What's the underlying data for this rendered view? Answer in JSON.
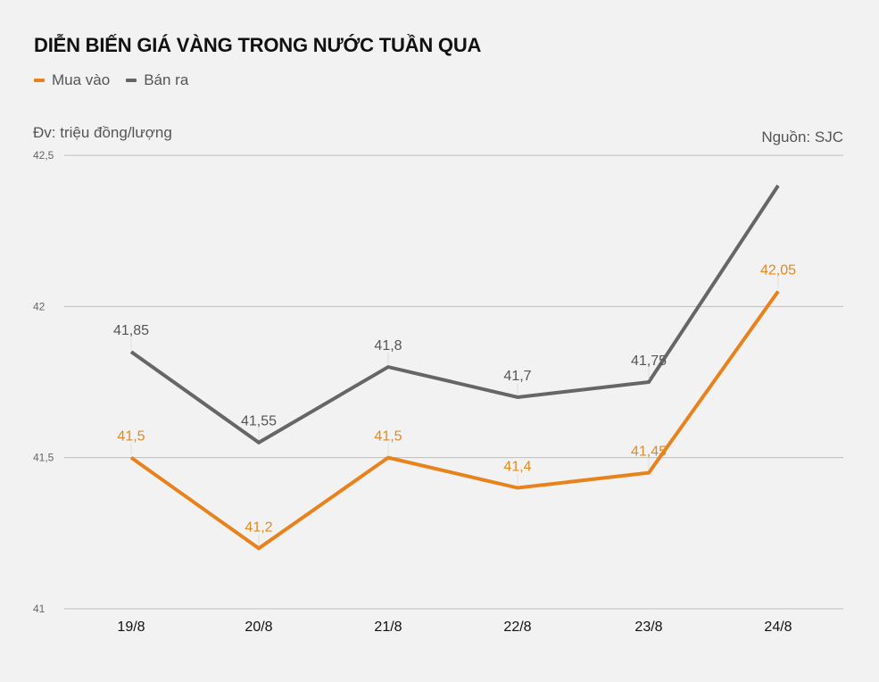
{
  "header": {
    "title": "DIỄN BIẾN GIÁ VÀNG TRONG NƯỚC TUẦN QUA",
    "legend": [
      {
        "label": "Mua vào",
        "color": "#e8821c"
      },
      {
        "label": "Bán ra",
        "color": "#666666"
      }
    ],
    "unit": "Đv: triệu đồng/lượng",
    "source": "Nguồn: SJC"
  },
  "chart_data": {
    "type": "line",
    "title": "DIỄN BIẾN GIÁ VÀNG TRONG NƯỚC TUẦN QUA",
    "xlabel": "",
    "ylabel": "Đv: triệu đồng/lượng",
    "categories": [
      "19/8",
      "20/8",
      "21/8",
      "22/8",
      "23/8",
      "24/8"
    ],
    "series": [
      {
        "name": "Mua vào",
        "color": "#e8821c",
        "values": [
          41.5,
          41.2,
          41.5,
          41.4,
          41.45,
          42.05
        ],
        "labels": [
          "41,5",
          "41,2",
          "41,5",
          "41,4",
          "41,45",
          "42,05"
        ]
      },
      {
        "name": "Bán ra",
        "color": "#666666",
        "values": [
          41.85,
          41.55,
          41.8,
          41.7,
          41.75,
          42.4
        ],
        "labels": [
          "41,85",
          "41,55",
          "41,8",
          "41,7",
          "41,75",
          ""
        ]
      }
    ],
    "yticks": [
      41,
      41.5,
      42,
      42.5
    ],
    "ytick_labels": [
      "41",
      "41,5",
      "42",
      "42,5"
    ],
    "ylim": [
      41,
      42.5
    ],
    "grid": true,
    "legend_position": "top-left",
    "annotations": [
      "Nguồn: SJC"
    ]
  }
}
